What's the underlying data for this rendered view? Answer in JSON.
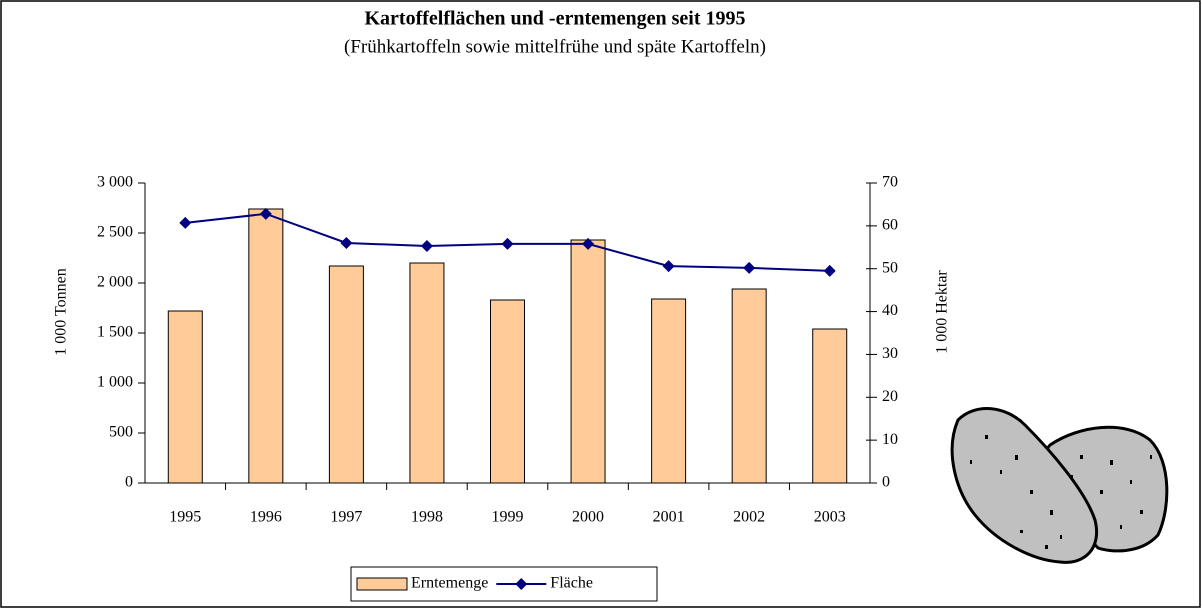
{
  "chart_data": {
    "type": "bar",
    "title": "Kartoffelflächen und -erntemengen seit 1995",
    "subtitle": "(Frühkartoffeln sowie mittelfrühe und späte Kartoffeln)",
    "y_label": "1 000 Tonnen",
    "y2_label": "1 000 Hektar",
    "categories": [
      "1995",
      "1996",
      "1997",
      "1998",
      "1999",
      "2000",
      "2001",
      "2002",
      "2003"
    ],
    "series": [
      {
        "name": "Erntemenge",
        "type": "bar",
        "color": "#ffcc99",
        "values": [
          1720,
          2740,
          2170,
          2200,
          1830,
          2430,
          1840,
          1940,
          1540
        ]
      },
      {
        "name": "Fläche",
        "type": "line",
        "axis": "y2",
        "color": "#000080",
        "values": [
          60.7,
          62.8,
          56.0,
          55.3,
          55.8,
          55.8,
          50.6,
          50.2,
          49.5
        ]
      }
    ],
    "ylim": [
      0,
      3000
    ],
    "yticks": [
      0,
      500,
      {
        "value": 1000,
        "label": "1 000"
      },
      {
        "value": 1500,
        "label": "1 500"
      },
      {
        "value": 2000,
        "label": "2 000"
      },
      {
        "value": 2500,
        "label": "2 500"
      },
      {
        "value": 3000,
        "label": "3 000"
      }
    ],
    "y2lim": [
      0,
      70
    ],
    "y2ticks": [
      0,
      10,
      20,
      30,
      40,
      50,
      60,
      70
    ],
    "legend": "bottom",
    "grid": false
  }
}
